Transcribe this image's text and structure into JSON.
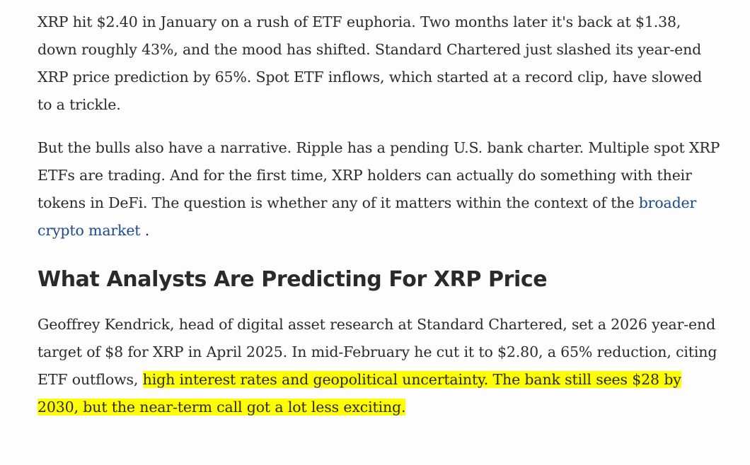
{
  "article": {
    "p1": "XRP hit $2.40 in January on a rush of ETF euphoria. Two months later it's back at $1.38, down roughly 43%, and the mood has shifted. Standard Chartered just slashed its year-end XRP price prediction by 65%. Spot ETF inflows, which started at a record clip, have slowed to a trickle.",
    "p2_before": "But the bulls also have a narrative. Ripple has a pending U.S. bank charter. Multiple spot XRP ETFs are trading. And for the first time, XRP holders can actually do something with their tokens in DeFi. The question is whether any of it matters within the context of the ",
    "p2_link": "broader crypto market",
    "p2_after": " .",
    "heading": "What Analysts Are Predicting For XRP Price",
    "p3_before": "Geoffrey Kendrick, head of digital asset research at Standard Chartered, set a 2026 year-end target of $8 for XRP in April 2025. In mid-February he cut it to $2.80, a 65% reduction, citing ETF outflows, ",
    "p3_highlight": "high interest rates and geopolitical uncertainty. The bank still sees $28 by 2030, but the near-term call got a lot less exciting."
  },
  "colors": {
    "text": "#2b2b2b",
    "link": "#1a4b8c",
    "highlight": "#ffff00"
  }
}
